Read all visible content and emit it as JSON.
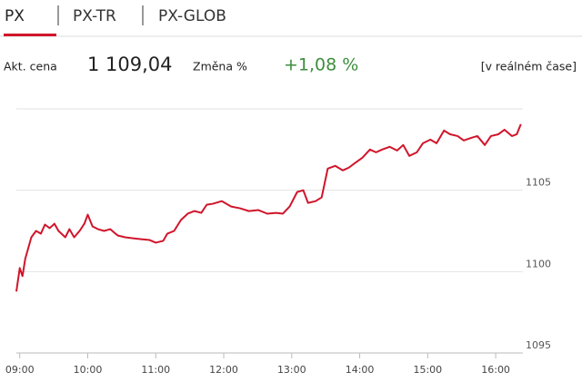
{
  "tabs": [
    "PX",
    "PX-TR",
    "PX-GLOB"
  ],
  "quote": {
    "price_label": "Akt. cena",
    "price": "1 109,04",
    "change_label": "Změna %",
    "change": "+1,08 %",
    "realtime": "[v reálném čase]"
  },
  "chart_data": {
    "type": "line",
    "color": "#d0152b",
    "x": [
      8.95,
      9.0,
      9.04,
      9.08,
      9.17,
      9.24,
      9.31,
      9.37,
      9.44,
      9.51,
      9.57,
      9.67,
      9.73,
      9.8,
      9.88,
      9.95,
      10.0,
      10.07,
      10.15,
      10.24,
      10.33,
      10.44,
      10.55,
      10.64,
      10.77,
      10.91,
      11.0,
      11.11,
      11.17,
      11.27,
      11.37,
      11.47,
      11.57,
      11.67,
      11.75,
      11.84,
      11.97,
      12.11,
      12.24,
      12.37,
      12.51,
      12.64,
      12.77,
      12.87,
      12.97,
      13.08,
      13.17,
      13.24,
      13.35,
      13.44,
      13.53,
      13.64,
      13.75,
      13.84,
      13.93,
      14.04,
      14.15,
      14.24,
      14.33,
      14.44,
      14.55,
      14.64,
      14.73,
      14.84,
      14.93,
      15.04,
      15.13,
      15.24,
      15.33,
      15.44,
      15.53,
      15.64,
      15.73,
      15.84,
      15.93,
      16.04,
      16.13,
      16.24,
      16.31,
      16.37
    ],
    "values": [
      1098.78,
      1100.22,
      1099.72,
      1100.78,
      1102.11,
      1102.5,
      1102.33,
      1102.89,
      1102.67,
      1102.94,
      1102.5,
      1102.11,
      1102.61,
      1102.11,
      1102.5,
      1102.94,
      1103.5,
      1102.78,
      1102.61,
      1102.5,
      1102.61,
      1102.22,
      1102.11,
      1102.06,
      1102.0,
      1101.94,
      1101.78,
      1101.89,
      1102.33,
      1102.5,
      1103.17,
      1103.56,
      1103.72,
      1103.61,
      1104.11,
      1104.17,
      1104.33,
      1104.0,
      1103.89,
      1103.72,
      1103.78,
      1103.56,
      1103.61,
      1103.56,
      1104.0,
      1104.89,
      1105.0,
      1104.22,
      1104.33,
      1104.56,
      1106.33,
      1106.5,
      1106.22,
      1106.39,
      1106.67,
      1107.0,
      1107.5,
      1107.33,
      1107.5,
      1107.67,
      1107.44,
      1107.78,
      1107.11,
      1107.33,
      1107.89,
      1108.11,
      1107.89,
      1108.67,
      1108.44,
      1108.33,
      1108.06,
      1108.22,
      1108.33,
      1107.78,
      1108.33,
      1108.44,
      1108.72,
      1108.33,
      1108.44,
      1109.06
    ],
    "xlim": [
      8.95,
      16.4
    ],
    "xticks": [
      {
        "value": 9,
        "label": "09:00"
      },
      {
        "value": 10,
        "label": "10:00"
      },
      {
        "value": 11,
        "label": "11:00"
      },
      {
        "value": 12,
        "label": "12:00"
      },
      {
        "value": 13,
        "label": "13:00"
      },
      {
        "value": 14,
        "label": "14:00"
      },
      {
        "value": 15,
        "label": "15:00"
      },
      {
        "value": 16,
        "label": "16:00"
      }
    ],
    "ylim": [
      1095,
      1110
    ],
    "yticks": [
      1095,
      1100,
      1105
    ],
    "grid": true
  }
}
